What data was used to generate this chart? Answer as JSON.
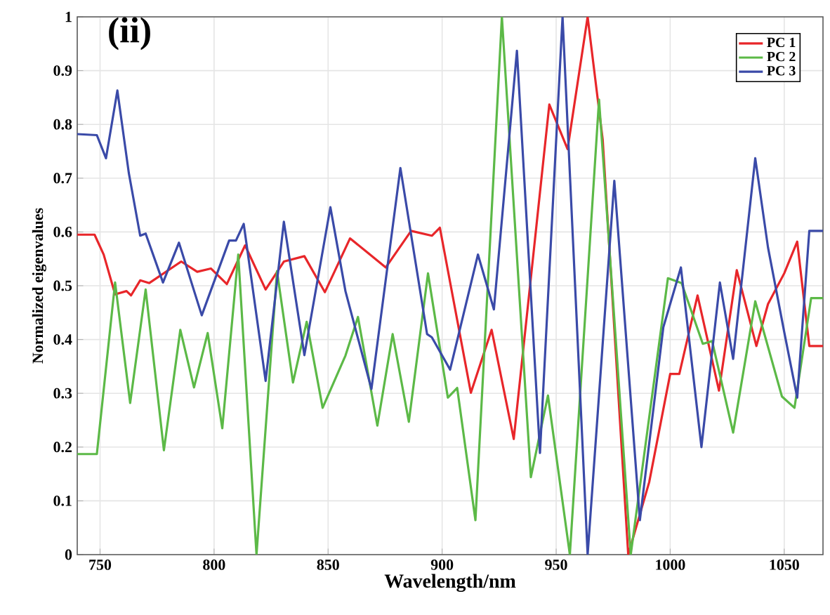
{
  "chart_data": {
    "type": "line",
    "title": "(ii)",
    "xlabel": "Wavelength/nm",
    "ylabel": "Normalized eigenvalues",
    "xlim": [
      740,
      1067
    ],
    "ylim": [
      0,
      1
    ],
    "xticks": [
      750,
      800,
      850,
      900,
      950,
      1000,
      1050
    ],
    "yticks": [
      0,
      0.1,
      0.2,
      0.3,
      0.4,
      0.5,
      0.6,
      0.7,
      0.8,
      0.9,
      1
    ],
    "grid": true,
    "legend": "top right",
    "marker": "none",
    "line_style": "solid",
    "series": [
      {
        "name": "PC 1",
        "color": "#e8262a",
        "x": [
          740,
          747.6,
          751.6,
          756.6,
          761.6,
          763.6,
          767.6,
          771.6,
          785.6,
          792.6,
          798.6,
          805.6,
          813.6,
          822.6,
          830.6,
          839.6,
          848.6,
          859.6,
          867.2,
          875.3,
          886.4,
          895.5,
          899,
          912.6,
          921.7,
          931.4,
          947,
          955,
          963.8,
          970.4,
          981.6,
          990.8,
          1000,
          1004,
          1012,
          1021.4,
          1029.2,
          1037.8,
          1042.9,
          1050,
          1055.7,
          1061,
          1067
        ],
        "values": [
          0.595,
          0.595,
          0.558,
          0.484,
          0.49,
          0.482,
          0.51,
          0.505,
          0.545,
          0.526,
          0.532,
          0.503,
          0.575,
          0.493,
          0.545,
          0.555,
          0.488,
          0.588,
          0.562,
          0.534,
          0.602,
          0.593,
          0.608,
          0.301,
          0.418,
          0.215,
          0.837,
          0.754,
          1.0,
          0.772,
          0.0,
          0.135,
          0.336,
          0.336,
          0.482,
          0.305,
          0.529,
          0.388,
          0.466,
          0.523,
          0.582,
          0.388,
          0.388
        ]
      },
      {
        "name": "PC 2",
        "color": "#5cb947",
        "x": [
          740,
          748.6,
          756.6,
          763.2,
          770,
          778,
          785.2,
          791.2,
          797.2,
          803.6,
          810.6,
          818.6,
          827.6,
          834.6,
          840.6,
          847.6,
          857.6,
          863.1,
          871.6,
          878.3,
          885.4,
          893.8,
          902.5,
          906.6,
          914.6,
          926.2,
          938.9,
          946.4,
          956,
          968.8,
          982.7,
          999,
          1005,
          1014.3,
          1018.4,
          1027.6,
          1037.3,
          1049,
          1054.5,
          1061.8,
          1067
        ],
        "values": [
          0.187,
          0.187,
          0.506,
          0.282,
          0.493,
          0.194,
          0.418,
          0.311,
          0.412,
          0.235,
          0.558,
          0.0,
          0.527,
          0.32,
          0.433,
          0.273,
          0.37,
          0.442,
          0.24,
          0.41,
          0.247,
          0.523,
          0.292,
          0.31,
          0.064,
          1.0,
          0.144,
          0.296,
          0.0,
          0.846,
          0.0,
          0.514,
          0.505,
          0.392,
          0.397,
          0.227,
          0.471,
          0.294,
          0.273,
          0.477,
          0.477
        ]
      },
      {
        "name": "PC 3",
        "color": "#3a4aa8",
        "x": [
          740,
          748.6,
          752.6,
          757.6,
          762.6,
          767.6,
          770,
          777.6,
          784.6,
          794.6,
          806.6,
          809.6,
          813,
          822.6,
          830.6,
          839.6,
          851,
          857.6,
          869,
          881.7,
          893.4,
          895.5,
          903.5,
          915.7,
          922.7,
          932.8,
          942.9,
          952.8,
          963.8,
          975.5,
          986.7,
          997,
          1004.7,
          1013.7,
          1021.8,
          1027.6,
          1037.3,
          1042.9,
          1050,
          1055.7,
          1061,
          1067
        ],
        "values": [
          0.782,
          0.78,
          0.737,
          0.863,
          0.71,
          0.593,
          0.597,
          0.506,
          0.58,
          0.445,
          0.584,
          0.584,
          0.615,
          0.323,
          0.619,
          0.371,
          0.646,
          0.49,
          0.308,
          0.719,
          0.41,
          0.404,
          0.344,
          0.558,
          0.456,
          0.937,
          0.189,
          1.0,
          0.0,
          0.695,
          0.064,
          0.423,
          0.534,
          0.2,
          0.506,
          0.364,
          0.737,
          0.571,
          0.414,
          0.292,
          0.602,
          0.602
        ]
      }
    ]
  }
}
